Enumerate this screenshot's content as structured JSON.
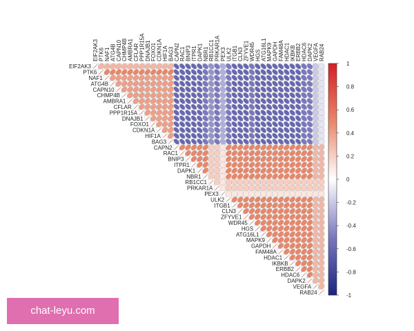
{
  "chart_data": {
    "type": "corrplot",
    "labels": [
      "EIF2AK3",
      "PTK6",
      "NAF1",
      "ATG4B",
      "CAPN10",
      "CHMP4B",
      "AMBRA1",
      "CFLAR",
      "PPP1R15A",
      "DNAJB1",
      "FOXO1",
      "CDKN1A",
      "HIF1A",
      "BAG3",
      "CAPN2",
      "RAC1",
      "BNIP3",
      "ITPR1",
      "DAPK1",
      "NBR1",
      "RB1CC1",
      "PRKAR1A",
      "PEX3",
      "ULK2",
      "ITGB1",
      "CLN3",
      "ZFYVE1",
      "WDR45",
      "HGS",
      "ATG16L1",
      "MAPK9",
      "GAPDH",
      "FAM48A",
      "HDAC1",
      "IKBKB",
      "ERBB2",
      "HDAC6",
      "DAPK2",
      "VEGFA",
      "RAB24"
    ],
    "matrix": [
      [
        1,
        0.3,
        0.3,
        0.3,
        0.3,
        0.3,
        0.3,
        0.3,
        0.3,
        0.3,
        0.3,
        0.3,
        0.3,
        0.3,
        -0.6,
        -0.6,
        -0.6,
        -0.6,
        -0.6,
        -0.5,
        -0.4,
        -0.5,
        -0.3,
        -0.5,
        -0.6,
        -0.6,
        -0.6,
        -0.5,
        -0.6,
        -0.6,
        -0.6,
        -0.6,
        -0.6,
        -0.6,
        -0.6,
        -0.6,
        -0.5,
        -0.5,
        -0.2,
        -0.1
      ],
      [
        1,
        0.5,
        0.5,
        0.5,
        0.5,
        0.5,
        0.5,
        0.5,
        0.5,
        0.5,
        0.5,
        0.5,
        0.5,
        -0.6,
        -0.6,
        -0.6,
        -0.6,
        -0.6,
        -0.5,
        -0.4,
        -0.5,
        -0.3,
        -0.5,
        -0.6,
        -0.6,
        -0.6,
        -0.5,
        -0.6,
        -0.6,
        -0.6,
        -0.6,
        -0.6,
        -0.6,
        -0.6,
        -0.6,
        -0.5,
        -0.5,
        -0.2,
        -0.1
      ],
      [
        1,
        0.4,
        0.4,
        0.4,
        0.4,
        0.4,
        0.4,
        0.4,
        0.4,
        0.4,
        0.4,
        0.4,
        -0.6,
        -0.6,
        -0.6,
        -0.6,
        -0.6,
        -0.5,
        -0.4,
        -0.5,
        -0.3,
        -0.5,
        -0.6,
        -0.6,
        -0.6,
        -0.5,
        -0.6,
        -0.6,
        -0.6,
        -0.6,
        -0.6,
        -0.6,
        -0.6,
        -0.6,
        -0.5,
        -0.5,
        -0.2,
        -0.1
      ],
      [
        1,
        0.4,
        0.4,
        0.4,
        0.4,
        0.4,
        0.4,
        0.4,
        0.4,
        0.4,
        0.4,
        -0.6,
        -0.6,
        -0.6,
        -0.6,
        -0.6,
        -0.5,
        -0.4,
        -0.5,
        -0.3,
        -0.5,
        -0.6,
        -0.6,
        -0.6,
        -0.5,
        -0.6,
        -0.6,
        -0.6,
        -0.6,
        -0.6,
        -0.6,
        -0.6,
        -0.6,
        -0.5,
        -0.5,
        -0.2,
        -0.1
      ],
      [
        1,
        0.4,
        0.4,
        0.4,
        0.4,
        0.4,
        0.4,
        0.4,
        0.4,
        0.4,
        -0.6,
        -0.6,
        -0.6,
        -0.6,
        -0.6,
        -0.5,
        -0.4,
        -0.5,
        -0.3,
        -0.5,
        -0.6,
        -0.6,
        -0.6,
        -0.5,
        -0.6,
        -0.6,
        -0.6,
        -0.6,
        -0.6,
        -0.6,
        -0.6,
        -0.6,
        -0.5,
        -0.5,
        -0.2,
        -0.1
      ],
      [
        1,
        0.4,
        0.4,
        0.4,
        0.4,
        0.4,
        0.4,
        0.4,
        0.4,
        -0.6,
        -0.6,
        -0.6,
        -0.6,
        -0.6,
        -0.5,
        -0.4,
        -0.5,
        -0.3,
        -0.5,
        -0.6,
        -0.6,
        -0.6,
        -0.5,
        -0.6,
        -0.6,
        -0.6,
        -0.6,
        -0.6,
        -0.6,
        -0.6,
        -0.6,
        -0.5,
        -0.5,
        -0.2,
        -0.1
      ],
      [
        1,
        0.4,
        0.4,
        0.4,
        0.4,
        0.4,
        0.4,
        0.4,
        -0.6,
        -0.6,
        -0.6,
        -0.6,
        -0.6,
        -0.5,
        -0.4,
        -0.5,
        -0.3,
        -0.5,
        -0.6,
        -0.6,
        -0.6,
        -0.5,
        -0.6,
        -0.6,
        -0.6,
        -0.6,
        -0.6,
        -0.6,
        -0.6,
        -0.6,
        -0.5,
        -0.5,
        -0.2,
        -0.1
      ],
      [
        1,
        0.4,
        0.4,
        0.4,
        0.4,
        0.4,
        0.4,
        -0.6,
        -0.6,
        -0.6,
        -0.6,
        -0.6,
        -0.5,
        -0.4,
        -0.5,
        -0.3,
        -0.5,
        -0.6,
        -0.6,
        -0.6,
        -0.5,
        -0.6,
        -0.6,
        -0.6,
        -0.6,
        -0.6,
        -0.6,
        -0.6,
        -0.6,
        -0.5,
        -0.5,
        -0.2,
        -0.1
      ],
      [
        1,
        0.4,
        0.4,
        0.4,
        0.4,
        0.4,
        -0.6,
        -0.6,
        -0.6,
        -0.6,
        -0.6,
        -0.5,
        -0.4,
        -0.5,
        -0.3,
        -0.5,
        -0.6,
        -0.6,
        -0.6,
        -0.5,
        -0.6,
        -0.6,
        -0.6,
        -0.6,
        -0.6,
        -0.6,
        -0.6,
        -0.6,
        -0.5,
        -0.5,
        -0.2,
        -0.1
      ],
      [
        1,
        0.4,
        0.4,
        0.4,
        0.4,
        -0.6,
        -0.6,
        -0.6,
        -0.6,
        -0.6,
        -0.5,
        -0.4,
        -0.5,
        -0.3,
        -0.5,
        -0.6,
        -0.6,
        -0.6,
        -0.5,
        -0.6,
        -0.6,
        -0.6,
        -0.6,
        -0.6,
        -0.6,
        -0.6,
        -0.6,
        -0.5,
        -0.5,
        -0.2,
        -0.1
      ],
      [
        1,
        0.4,
        0.4,
        0.4,
        -0.6,
        -0.6,
        -0.6,
        -0.6,
        -0.6,
        -0.5,
        -0.4,
        -0.5,
        -0.3,
        -0.5,
        -0.6,
        -0.6,
        -0.6,
        -0.5,
        -0.6,
        -0.6,
        -0.6,
        -0.6,
        -0.6,
        -0.6,
        -0.6,
        -0.6,
        -0.5,
        -0.5,
        -0.2,
        -0.1
      ],
      [
        1,
        0.4,
        0.4,
        -0.6,
        -0.6,
        -0.6,
        -0.6,
        -0.6,
        -0.5,
        -0.4,
        -0.5,
        -0.3,
        -0.5,
        -0.6,
        -0.6,
        -0.6,
        -0.5,
        -0.6,
        -0.6,
        -0.6,
        -0.6,
        -0.6,
        -0.6,
        -0.6,
        -0.6,
        -0.5,
        -0.5,
        -0.2,
        -0.1
      ],
      [
        1,
        0.4,
        -0.6,
        -0.6,
        -0.6,
        -0.6,
        -0.6,
        -0.5,
        -0.4,
        -0.5,
        -0.3,
        -0.5,
        -0.6,
        -0.6,
        -0.6,
        -0.5,
        -0.6,
        -0.6,
        -0.6,
        -0.6,
        -0.6,
        -0.6,
        -0.6,
        -0.6,
        -0.5,
        -0.5,
        -0.2,
        -0.1
      ],
      [
        1,
        -0.6,
        -0.6,
        -0.6,
        -0.6,
        -0.6,
        -0.5,
        -0.4,
        -0.5,
        -0.3,
        -0.5,
        -0.6,
        -0.6,
        -0.6,
        -0.5,
        -0.6,
        -0.6,
        -0.6,
        -0.6,
        -0.6,
        -0.6,
        -0.6,
        -0.6,
        -0.5,
        -0.5,
        -0.2,
        -0.1
      ],
      [
        1,
        0.5,
        0.5,
        0.5,
        0.5,
        0.5,
        0.2,
        0.2,
        0.1,
        0.5,
        0.5,
        0.5,
        0.5,
        0.5,
        0.5,
        0.5,
        0.5,
        0.5,
        0.5,
        0.5,
        0.5,
        0.5,
        0.5,
        0.5,
        0.3,
        0.3
      ],
      [
        1,
        0.5,
        0.5,
        0.5,
        0.5,
        0.2,
        0.2,
        0.1,
        0.5,
        0.5,
        0.5,
        0.5,
        0.5,
        0.5,
        0.5,
        0.5,
        0.5,
        0.5,
        0.5,
        0.5,
        0.5,
        0.5,
        0.5,
        0.3,
        0.3
      ],
      [
        1,
        0.5,
        0.5,
        0.5,
        0.2,
        0.2,
        0.1,
        0.5,
        0.5,
        0.5,
        0.5,
        0.5,
        0.5,
        0.5,
        0.5,
        0.5,
        0.5,
        0.5,
        0.5,
        0.5,
        0.5,
        0.5,
        0.3,
        0.3
      ],
      [
        1,
        0.5,
        0.5,
        0.2,
        0.2,
        0.1,
        0.5,
        0.5,
        0.5,
        0.5,
        0.5,
        0.5,
        0.5,
        0.5,
        0.5,
        0.5,
        0.5,
        0.5,
        0.5,
        0.5,
        0.5,
        0.3,
        0.3
      ],
      [
        1,
        0.5,
        0.2,
        0.2,
        0.1,
        0.5,
        0.5,
        0.5,
        0.5,
        0.5,
        0.5,
        0.5,
        0.5,
        0.5,
        0.5,
        0.5,
        0.5,
        0.5,
        0.5,
        0.5,
        0.3,
        0.3
      ],
      [
        1,
        0.2,
        0.2,
        0.1,
        0.5,
        0.5,
        0.5,
        0.5,
        0.5,
        0.5,
        0.5,
        0.5,
        0.5,
        0.5,
        0.5,
        0.5,
        0.5,
        0.5,
        0.5,
        0.3,
        0.3
      ],
      [
        1,
        0.2,
        0.1,
        0.2,
        0.2,
        0.2,
        0.2,
        0.2,
        0.2,
        0.2,
        0.2,
        0.2,
        0.2,
        0.2,
        0.2,
        0.2,
        0.2,
        0.2,
        0.2,
        0.2
      ],
      [
        1,
        0.1,
        0.2,
        0.2,
        0.2,
        0.2,
        0.2,
        0.2,
        0.2,
        0.2,
        0.2,
        0.2,
        0.2,
        0.2,
        0.2,
        0.2,
        0.2,
        0.2,
        0.2
      ],
      [
        1,
        0.1,
        0.1,
        0.1,
        0.1,
        0.1,
        0.1,
        0.1,
        0.1,
        0.1,
        0.1,
        0.1,
        0.1,
        0.1,
        0.1,
        0.1,
        0.1,
        0.1
      ],
      [
        1,
        0.5,
        0.5,
        0.5,
        0.5,
        0.5,
        0.5,
        0.5,
        0.5,
        0.5,
        0.5,
        0.5,
        0.5,
        0.5,
        0.5,
        0.3,
        0.3
      ],
      [
        1,
        0.5,
        0.5,
        0.5,
        0.5,
        0.5,
        0.5,
        0.5,
        0.5,
        0.5,
        0.5,
        0.5,
        0.5,
        0.5,
        0.3,
        0.3
      ],
      [
        1,
        0.5,
        0.5,
        0.5,
        0.5,
        0.5,
        0.5,
        0.5,
        0.5,
        0.5,
        0.5,
        0.5,
        0.5,
        0.3,
        0.3
      ],
      [
        1,
        0.5,
        0.5,
        0.5,
        0.5,
        0.5,
        0.5,
        0.5,
        0.5,
        0.5,
        0.5,
        0.5,
        0.3,
        0.3
      ],
      [
        1,
        0.5,
        0.5,
        0.5,
        0.5,
        0.5,
        0.5,
        0.5,
        0.5,
        0.5,
        0.5,
        0.3,
        0.3
      ],
      [
        1,
        0.5,
        0.5,
        0.5,
        0.5,
        0.5,
        0.5,
        0.5,
        0.5,
        0.5,
        0.3,
        0.3
      ],
      [
        1,
        0.5,
        0.5,
        0.5,
        0.5,
        0.5,
        0.5,
        0.5,
        0.5,
        0.3,
        0.3
      ],
      [
        1,
        0.5,
        0.5,
        0.5,
        0.5,
        0.5,
        0.5,
        0.5,
        0.3,
        0.3
      ],
      [
        1,
        0.5,
        0.5,
        0.5,
        0.5,
        0.5,
        0.5,
        0.3,
        0.3
      ],
      [
        1,
        0.5,
        0.5,
        0.5,
        0.5,
        0.5,
        0.3,
        0.3
      ],
      [
        1,
        0.5,
        0.5,
        0.5,
        0.5,
        0.3,
        0.3
      ],
      [
        1,
        0.5,
        0.5,
        0.5,
        0.3,
        0.3
      ],
      [
        1,
        0.5,
        0.5,
        0.3,
        0.3
      ],
      [
        1,
        0.5,
        0.3,
        0.3
      ],
      [
        1,
        0.3,
        0.3
      ],
      [
        1,
        0.3
      ],
      [
        1
      ]
    ],
    "clim": [
      -1,
      1
    ],
    "cticks": [
      1,
      0.8,
      0.6,
      0.4,
      0.2,
      0,
      -0.2,
      -0.4,
      -0.6,
      -0.8,
      -1
    ],
    "colors": [
      "#1b2580",
      "#7a78c0",
      "#ffffff",
      "#e8876a",
      "#d61f26"
    ]
  },
  "watermark": "chat-leyu.com"
}
